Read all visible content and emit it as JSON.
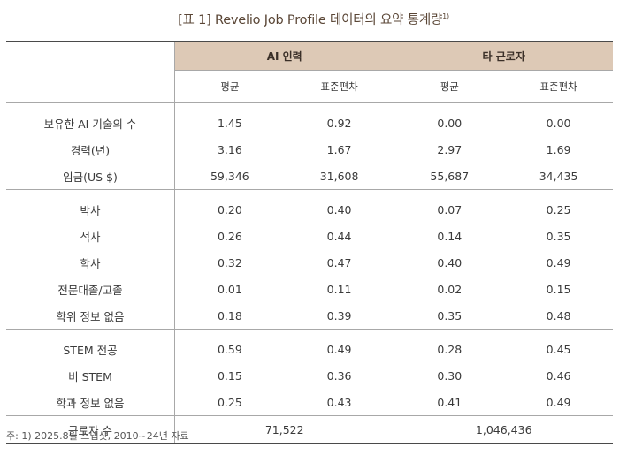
{
  "title": "[표 1] Revelio Job Profile 데이터의 요약 통계량",
  "title_note": "1)",
  "header": {
    "group_ai": "AI 인력",
    "group_other": "타 근로자",
    "mean": "평균",
    "sd": "표준편차"
  },
  "rows": [
    {
      "label": "보유한 AI 기술의 수",
      "ai_mean": "1.45",
      "ai_sd": "0.92",
      "other_mean": "0.00",
      "other_sd": "0.00"
    },
    {
      "label": "경력(년)",
      "ai_mean": "3.16",
      "ai_sd": "1.67",
      "other_mean": "2.97",
      "other_sd": "1.69"
    },
    {
      "label": "임금(US $)",
      "ai_mean": "59,346",
      "ai_sd": "31,608",
      "other_mean": "55,687",
      "other_sd": "34,435"
    },
    {
      "label": "박사",
      "ai_mean": "0.20",
      "ai_sd": "0.40",
      "other_mean": "0.07",
      "other_sd": "0.25"
    },
    {
      "label": "석사",
      "ai_mean": "0.26",
      "ai_sd": "0.44",
      "other_mean": "0.14",
      "other_sd": "0.35"
    },
    {
      "label": "학사",
      "ai_mean": "0.32",
      "ai_sd": "0.47",
      "other_mean": "0.40",
      "other_sd": "0.49"
    },
    {
      "label": "전문대졸/고졸",
      "ai_mean": "0.01",
      "ai_sd": "0.11",
      "other_mean": "0.02",
      "other_sd": "0.15"
    },
    {
      "label": "학위 정보 없음",
      "ai_mean": "0.18",
      "ai_sd": "0.39",
      "other_mean": "0.35",
      "other_sd": "0.48"
    },
    {
      "label": "STEM 전공",
      "ai_mean": "0.59",
      "ai_sd": "0.49",
      "other_mean": "0.28",
      "other_sd": "0.45"
    },
    {
      "label": "비 STEM",
      "ai_mean": "0.15",
      "ai_sd": "0.36",
      "other_mean": "0.30",
      "other_sd": "0.46"
    },
    {
      "label": "학과 정보 없음",
      "ai_mean": "0.25",
      "ai_sd": "0.43",
      "other_mean": "0.41",
      "other_sd": "0.49"
    }
  ],
  "workers": {
    "label": "근로자 수",
    "ai": "71,522",
    "other": "1,046,436"
  },
  "note": "주: 1) 2025.8월 스냅샷, 2010~24년 자료"
}
